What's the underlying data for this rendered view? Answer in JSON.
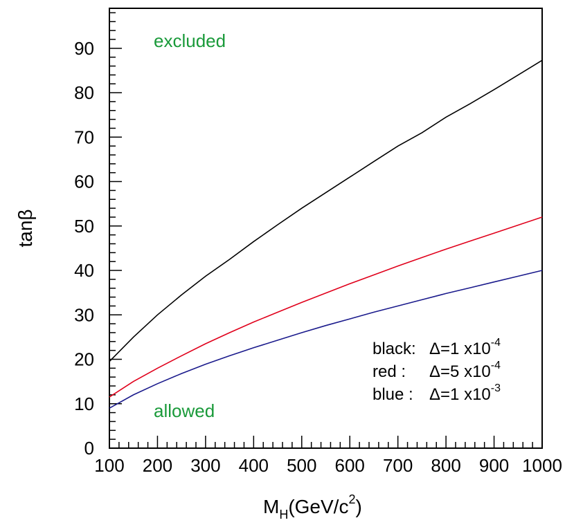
{
  "chart_data": {
    "type": "line",
    "x": [
      100,
      150,
      200,
      250,
      300,
      350,
      400,
      450,
      500,
      550,
      600,
      650,
      700,
      750,
      800,
      850,
      900,
      950,
      1000
    ],
    "series": [
      {
        "values": [
          19.5,
          25,
          30,
          34.5,
          38.7,
          42.5,
          46.5,
          50.3,
          54,
          57.5,
          61,
          64.5,
          68,
          71,
          74.5,
          77.5,
          80.7,
          84,
          87.3
        ],
        "color": "#000000"
      },
      {
        "values": [
          11.5,
          15,
          18,
          20.8,
          23.5,
          26,
          28.4,
          30.6,
          32.8,
          34.9,
          37,
          39,
          41,
          42.9,
          44.8,
          46.6,
          48.4,
          50.2,
          52
        ],
        "color": "#e0001b"
      },
      {
        "values": [
          9,
          12,
          14.5,
          16.8,
          18.9,
          20.8,
          22.6,
          24.3,
          26,
          27.6,
          29.1,
          30.6,
          32,
          33.4,
          34.8,
          36.1,
          37.4,
          38.7,
          40
        ],
        "color": "#1a1a8c"
      }
    ],
    "xlim": [
      100,
      1000
    ],
    "ylim": [
      0,
      99
    ],
    "xticks": [
      "100",
      "200",
      "300",
      "400",
      "500",
      "600",
      "700",
      "800",
      "900",
      "1000"
    ],
    "yticks": [
      "0",
      "10",
      "20",
      "30",
      "40",
      "50",
      "60",
      "70",
      "80",
      "90"
    ],
    "ylabel": "tanβ",
    "xlabel_main": "M",
    "xlabel_sub": "H",
    "xlabel_rest": "(GeV/c",
    "xlabel_sup": "2",
    "xlabel_close": ")",
    "grid": false,
    "annotations": {
      "excluded": "excluded",
      "allowed": "allowed",
      "annotation_color": "#1a9a3a"
    },
    "legend_text": [
      {
        "name": "black:",
        "prefix": "Δ=1 x10",
        "exp": "-4"
      },
      {
        "name": "red  :",
        "prefix": "Δ=5 x10",
        "exp": "-4"
      },
      {
        "name": "blue :",
        "prefix": "Δ=1 x10",
        "exp": "-3"
      }
    ]
  }
}
